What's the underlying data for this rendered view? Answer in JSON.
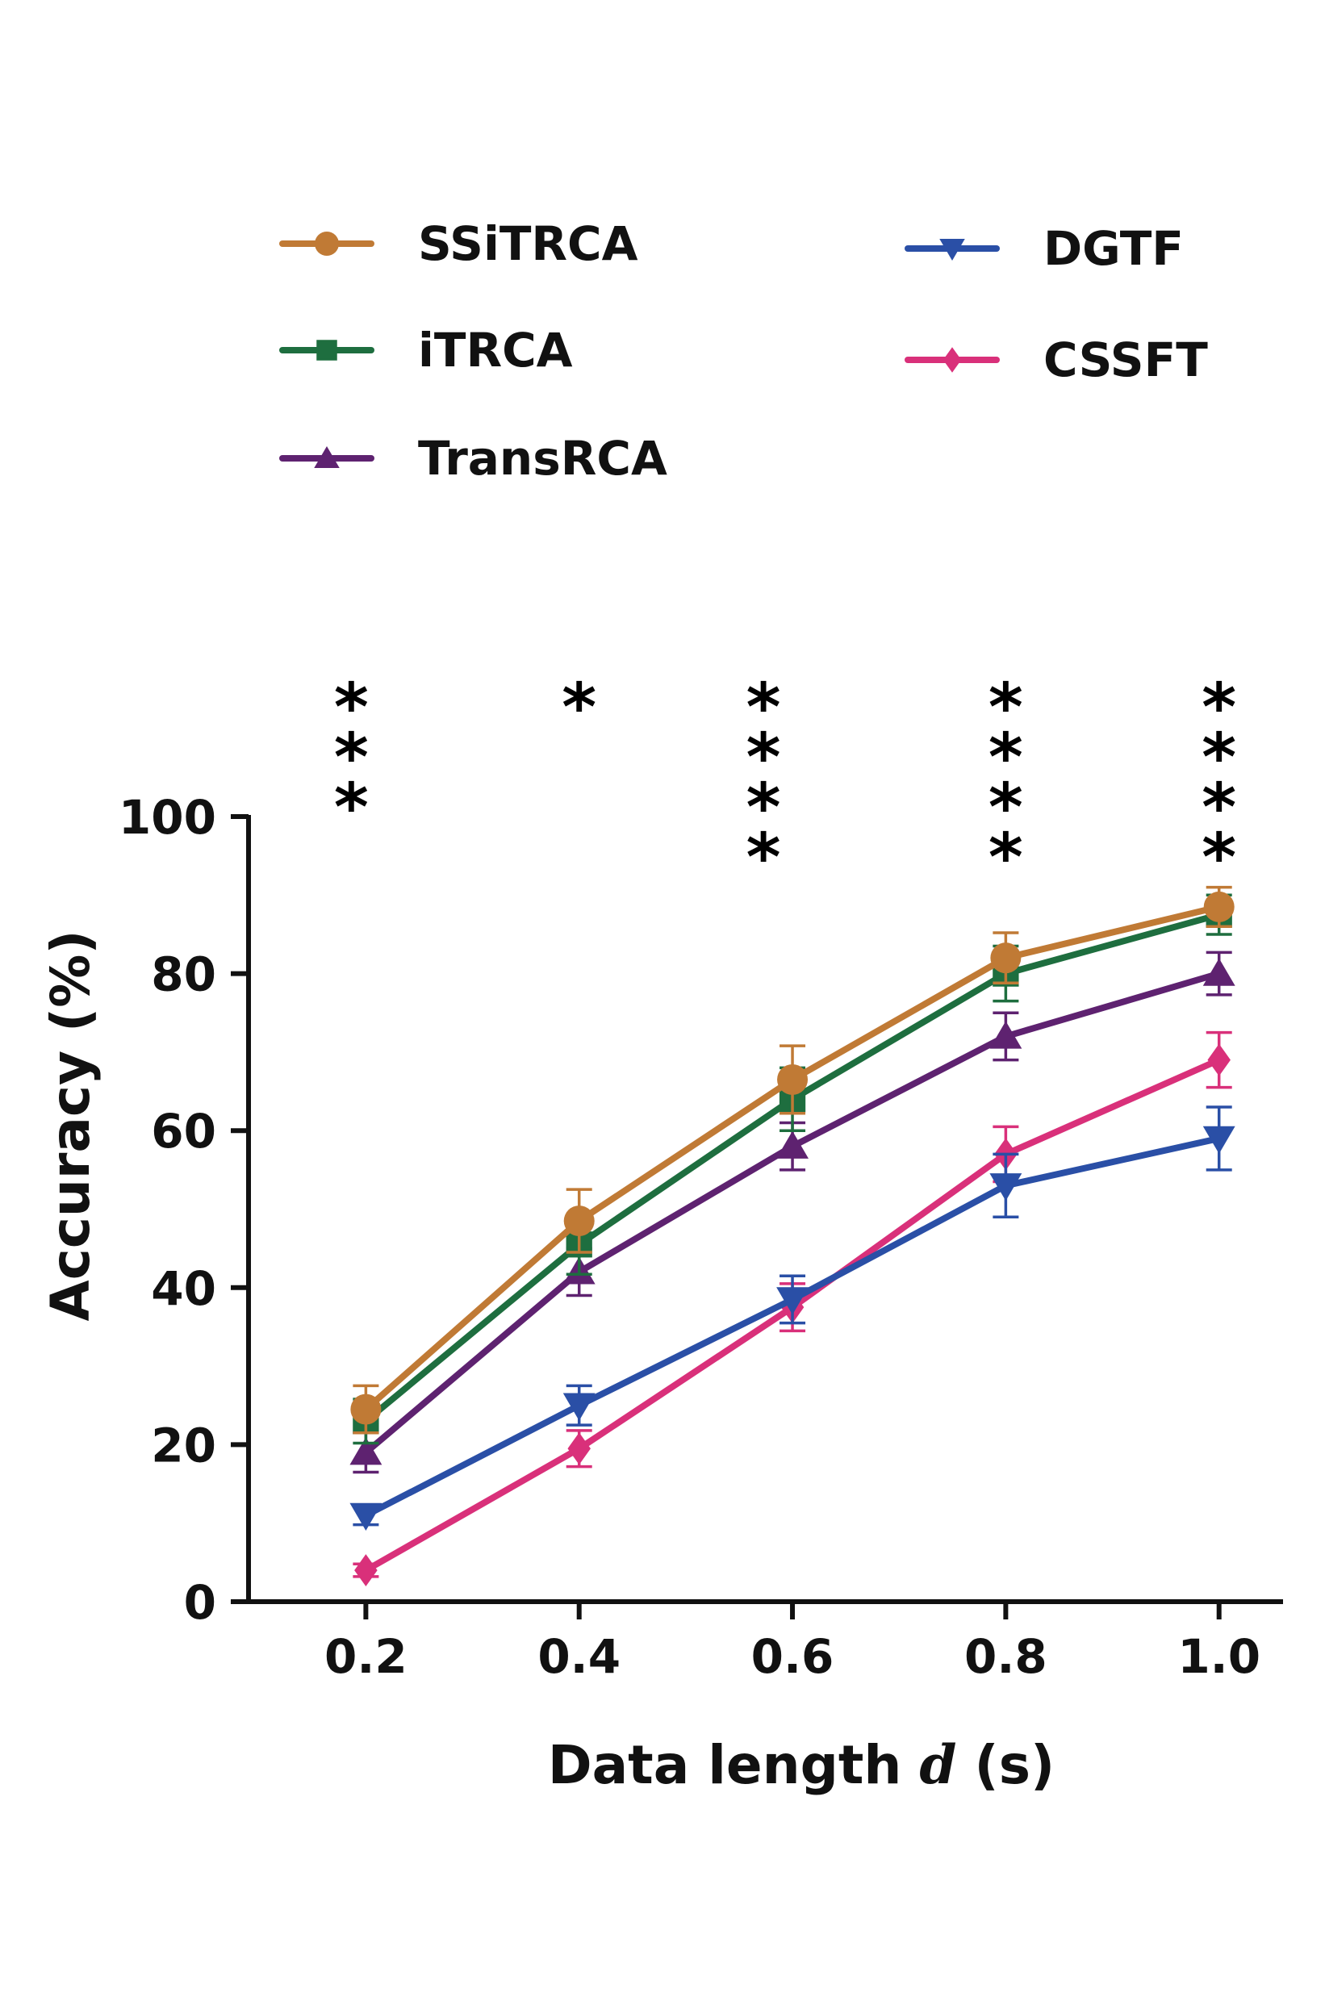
{
  "chart_data": {
    "type": "line",
    "title": "",
    "xlabel_main": "Data length",
    "xlabel_var": "d",
    "xlabel_unit": "(s)",
    "ylabel": "Accuracy (%)",
    "x": [
      0.2,
      0.4,
      0.6,
      0.8,
      1.0
    ],
    "x_tick_labels": [
      "0.2",
      "0.4",
      "0.6",
      "0.8",
      "1.0"
    ],
    "y_ticks": [
      0,
      20,
      40,
      60,
      80,
      100
    ],
    "y_tick_labels": [
      "0",
      "20",
      "40",
      "60",
      "80",
      "100"
    ],
    "xlim": [
      0.09,
      1.06
    ],
    "ylim": [
      0,
      100
    ],
    "grid": false,
    "legend_position": "top",
    "series": [
      {
        "name": "SSiTRCA",
        "color": "#C07A35",
        "marker": "circle",
        "values": [
          24.5,
          48.5,
          66.5,
          82.0,
          88.5
        ],
        "errors": [
          3.0,
          4.0,
          4.3,
          3.2,
          2.5
        ]
      },
      {
        "name": "iTRCA",
        "color": "#1E6E3F",
        "marker": "square",
        "values": [
          23.0,
          45.5,
          64.0,
          80.0,
          87.5
        ],
        "errors": [
          2.8,
          3.8,
          4.0,
          3.5,
          2.5
        ]
      },
      {
        "name": "TransRCA",
        "color": "#5E2270",
        "marker": "triangle-up",
        "values": [
          19.0,
          42.0,
          58.0,
          72.0,
          80.0
        ],
        "errors": [
          2.5,
          3.0,
          3.0,
          3.0,
          2.7
        ]
      },
      {
        "name": "DGTF",
        "color": "#2A4FA6",
        "marker": "triangle-down",
        "values": [
          11.0,
          25.0,
          38.5,
          53.0,
          59.0
        ],
        "errors": [
          1.2,
          2.5,
          3.0,
          4.0,
          4.0
        ]
      },
      {
        "name": "CSSFT",
        "color": "#D9307A",
        "marker": "diamond",
        "values": [
          4.0,
          19.5,
          37.5,
          57.0,
          69.0
        ],
        "errors": [
          0.8,
          2.3,
          3.0,
          3.5,
          3.5
        ]
      }
    ],
    "significance": [
      {
        "x": 0.2,
        "label": "***"
      },
      {
        "x": 0.4,
        "label": "*"
      },
      {
        "x": 0.6,
        "label": "****"
      },
      {
        "x": 0.8,
        "label": "****"
      },
      {
        "x": 1.0,
        "label": "****"
      }
    ]
  }
}
